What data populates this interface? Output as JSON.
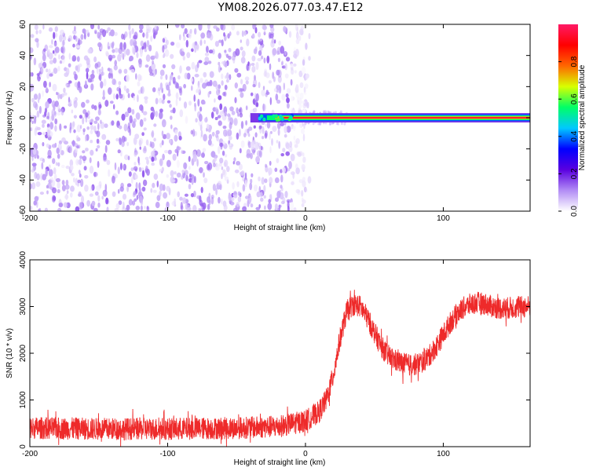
{
  "title": "YM08.2026.077.03.47.E12",
  "colors": {
    "background": "#ffffff",
    "axis": "#000000",
    "snr_line": "#ee2a2a",
    "scatter_purple": "#6a0ae8",
    "colormap": [
      "#ffffff",
      "#b28cf5",
      "#5a00e0",
      "#0000ff",
      "#00c8ff",
      "#00ff66",
      "#d8ff00",
      "#ff6600",
      "#ff0000",
      "#ff1a66"
    ]
  },
  "chart_data": [
    {
      "type": "heatmap",
      "name": "spectrogram",
      "xlabel": "Height of straight line (km)",
      "ylabel": "Frequency (Hz)",
      "xlim": [
        -200,
        163
      ],
      "ylim": [
        -60,
        60
      ],
      "x_ticks": [
        -200,
        -100,
        0,
        100
      ],
      "x_tick_labels": [
        "-200",
        "-100",
        "0",
        "100"
      ],
      "y_ticks": [
        -60,
        -40,
        -20,
        0,
        20,
        40,
        60
      ],
      "y_tick_labels": [
        "-60",
        "-40",
        "-20",
        "0",
        "20",
        "40",
        "60"
      ],
      "grid": false,
      "colorbar": {
        "label": "Normalized spectral amplitude",
        "range": [
          0,
          1
        ],
        "ticks": [
          0,
          0.2,
          0.4,
          0.6,
          0.8
        ],
        "tick_labels": [
          "0.0",
          "0.2",
          "0.4",
          "0.6",
          "0.8"
        ],
        "placement": "right"
      },
      "description_features": {
        "noise_region_x": [
          -200,
          0
        ],
        "noise_amplitude": 0.12,
        "signal_line_frequency": 0,
        "signal_line_start_x": -40,
        "signal_line_peak_amplitude": 0.95
      }
    },
    {
      "type": "line",
      "name": "snr",
      "xlabel": "Height of straight line (km)",
      "ylabel": "SNR (10 * v/v)",
      "xlim": [
        -200,
        163
      ],
      "ylim": [
        0,
        4000
      ],
      "x_ticks": [
        -200,
        -100,
        0,
        100
      ],
      "x_tick_labels": [
        "-200",
        "-100",
        "0",
        "100"
      ],
      "y_ticks": [
        0,
        1000,
        2000,
        3000,
        4000
      ],
      "y_tick_labels": [
        "0",
        "1000",
        "2000",
        "3000",
        "4000"
      ],
      "grid": false,
      "series": [
        {
          "x": [
            -200,
            -150,
            -100,
            -50,
            -20,
            0,
            10,
            15,
            20,
            25,
            30,
            35,
            40,
            45,
            50,
            55,
            60,
            65,
            70,
            75,
            80,
            85,
            90,
            95,
            100,
            105,
            110,
            115,
            120,
            125,
            130,
            135,
            140,
            145,
            150,
            155,
            160,
            163
          ],
          "y": [
            400,
            380,
            380,
            400,
            430,
            550,
            750,
            1000,
            1500,
            2300,
            2900,
            3050,
            3000,
            2750,
            2450,
            2150,
            1950,
            1850,
            1780,
            1750,
            1760,
            1820,
            1950,
            2150,
            2400,
            2650,
            2850,
            2980,
            3050,
            3080,
            3060,
            3000,
            2970,
            2960,
            2980,
            2980,
            3000,
            3000
          ],
          "noise_amplitude": 240
        }
      ]
    }
  ]
}
